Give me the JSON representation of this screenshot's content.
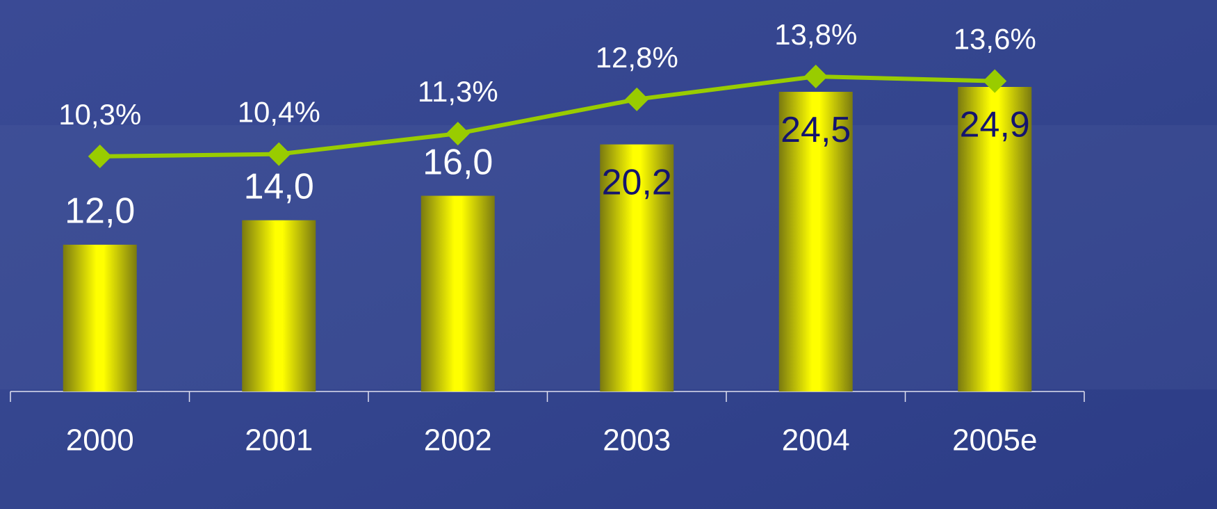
{
  "chart_data": {
    "type": "bar-line",
    "categories": [
      "2000",
      "2001",
      "2002",
      "2003",
      "2004",
      "2005e"
    ],
    "series": [
      {
        "type": "bar",
        "color": "#ffff00",
        "values": [
          12.0,
          14.0,
          16.0,
          20.2,
          24.5,
          24.9
        ],
        "value_labels": [
          "12,0",
          "14,0",
          "16,0",
          "20,2",
          "24,5",
          "24,9"
        ]
      },
      {
        "type": "line",
        "axis": "y2",
        "color": "#99cc00",
        "values": [
          10.3,
          10.4,
          11.3,
          12.8,
          13.8,
          13.6
        ],
        "value_labels": [
          "10,3%",
          "10,4%",
          "11,3%",
          "12,8%",
          "13,8%",
          "13,6%"
        ]
      }
    ]
  }
}
